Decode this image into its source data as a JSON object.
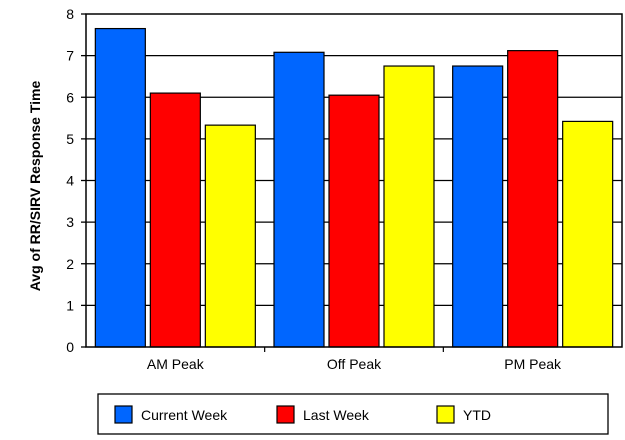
{
  "chart_data": {
    "type": "bar",
    "title": "",
    "xlabel": "",
    "ylabel": "Avg of RR/SIRV Response Time",
    "ylim": [
      0,
      8
    ],
    "yticks": [
      "0",
      "1",
      "2",
      "3",
      "4",
      "5",
      "6",
      "7",
      "8"
    ],
    "categories": [
      "AM Peak",
      "Off Peak",
      "PM Peak"
    ],
    "series": [
      {
        "name": "Current Week",
        "color": "#0066ff",
        "values": [
          7.65,
          7.08,
          6.75
        ]
      },
      {
        "name": "Last Week",
        "color": "#ff0000",
        "values": [
          6.1,
          6.05,
          7.12
        ]
      },
      {
        "name": "YTD",
        "color": "#ffff00",
        "values": [
          5.33,
          6.75,
          5.42
        ]
      }
    ],
    "grid": true,
    "legend_position": "bottom"
  }
}
